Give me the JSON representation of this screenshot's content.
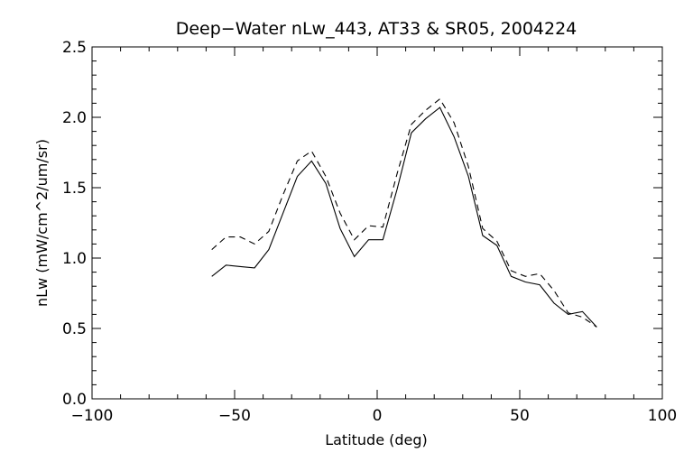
{
  "chart_data": {
    "type": "line",
    "title": "Deep−Water nLw_443, AT33 & SR05, 2004224",
    "xlabel": "Latitude (deg)",
    "ylabel": "nLw (mW/cm^2/um/sr)",
    "xlim": [
      -100,
      100
    ],
    "ylim": [
      0,
      2.5
    ],
    "x_ticks": [
      -100,
      -50,
      0,
      50,
      100
    ],
    "x_tick_labels": [
      "−100",
      "−50",
      "0",
      "50",
      "100"
    ],
    "y_ticks": [
      0.0,
      0.5,
      1.0,
      1.5,
      2.0,
      2.5
    ],
    "y_tick_labels": [
      "0.0",
      "0.5",
      "1.0",
      "1.5",
      "2.0",
      "2.5"
    ],
    "grid": false,
    "series": [
      {
        "style": "solid",
        "x": [
          -58,
          -53,
          -48,
          -43,
          -38,
          -33,
          -28,
          -23,
          -18,
          -13,
          -8,
          -3,
          2,
          7,
          12,
          17,
          22,
          27,
          32,
          37,
          42,
          47,
          52,
          57,
          62,
          67,
          72,
          77
        ],
        "y": [
          0.87,
          0.95,
          0.94,
          0.93,
          1.06,
          1.32,
          1.58,
          1.69,
          1.53,
          1.21,
          1.01,
          1.13,
          1.13,
          1.49,
          1.89,
          1.99,
          2.07,
          1.86,
          1.58,
          1.16,
          1.09,
          0.87,
          0.83,
          0.81,
          0.68,
          0.6,
          0.62,
          0.51
        ]
      },
      {
        "style": "dashed",
        "x": [
          -58,
          -53,
          -48,
          -43,
          -38,
          -33,
          -28,
          -23,
          -18,
          -13,
          -8,
          -3,
          2,
          7,
          12,
          17,
          22,
          27,
          32,
          37,
          42,
          47,
          52,
          57,
          62,
          67,
          72,
          77
        ],
        "y": [
          1.06,
          1.15,
          1.15,
          1.1,
          1.19,
          1.45,
          1.69,
          1.76,
          1.58,
          1.32,
          1.13,
          1.23,
          1.22,
          1.6,
          1.95,
          2.05,
          2.13,
          1.96,
          1.65,
          1.21,
          1.12,
          0.91,
          0.87,
          0.89,
          0.77,
          0.61,
          0.58,
          0.51
        ]
      }
    ]
  }
}
